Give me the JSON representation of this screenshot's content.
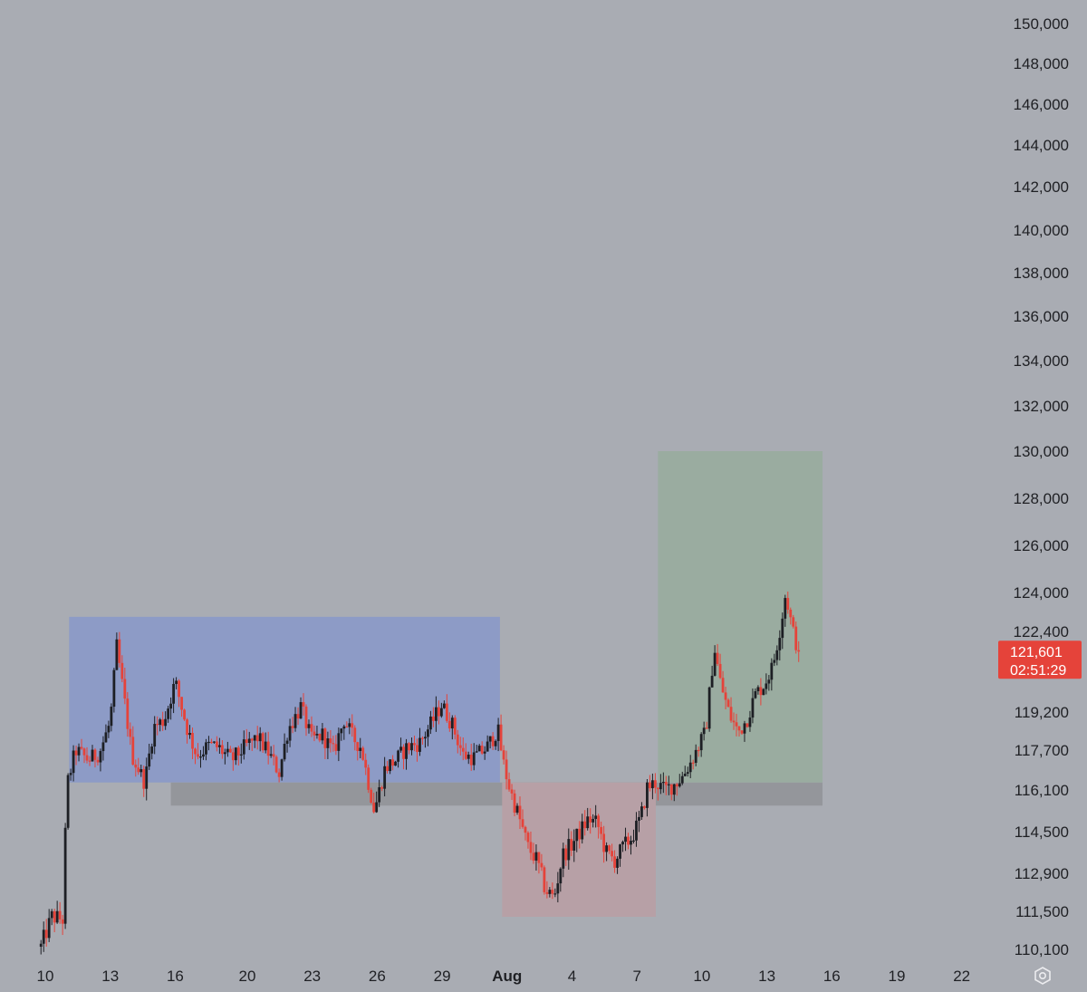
{
  "chart_data": {
    "type": "candlestick",
    "y_axis": {
      "ticks": [
        "150,000",
        "148,000",
        "146,000",
        "144,000",
        "142,000",
        "140,000",
        "138,000",
        "136,000",
        "134,000",
        "132,000",
        "130,000",
        "128,000",
        "126,000",
        "124,000",
        "122,400",
        "119,200",
        "117,700",
        "116,100",
        "114,500",
        "112,900",
        "111,500",
        "110,100"
      ],
      "range": [
        109600,
        150500
      ]
    },
    "x_axis": {
      "ticks": [
        {
          "label": "10",
          "day": 10
        },
        {
          "label": "13",
          "day": 13
        },
        {
          "label": "16",
          "day": 16
        },
        {
          "label": "20",
          "day": 19.33
        },
        {
          "label": "23",
          "day": 22.33
        },
        {
          "label": "26",
          "day": 25.33
        },
        {
          "label": "29",
          "day": 28.33
        },
        {
          "label": "Aug",
          "day": 31.33,
          "bold": true
        },
        {
          "label": "4",
          "day": 34.33
        },
        {
          "label": "7",
          "day": 37.33
        },
        {
          "label": "10",
          "day": 40.33
        },
        {
          "label": "13",
          "day": 43.33
        },
        {
          "label": "16",
          "day": 46.33
        },
        {
          "label": "19",
          "day": 49.33
        },
        {
          "label": "22",
          "day": 52.33
        }
      ],
      "range": [
        9.6,
        54.0
      ]
    },
    "last_price": {
      "price": "121,601",
      "countdown": "02:51:29",
      "value": 121601
    },
    "zones": [
      {
        "name": "range-zone",
        "x0": 11.1,
        "x1": 31.0,
        "y0": 116400,
        "y1": 123000,
        "color": "#8d9bc6"
      },
      {
        "name": "demand-zone",
        "x0": 15.8,
        "x1": 45.9,
        "y0": 115500,
        "y1": 116400,
        "color": "#94969b"
      },
      {
        "name": "sweep-zone",
        "x0": 31.1,
        "x1": 38.2,
        "y0": 111300,
        "y1": 116400,
        "color": "#b7a0a6"
      },
      {
        "name": "target-zone",
        "x0": 38.3,
        "x1": 45.9,
        "y0": 116400,
        "y1": 130000,
        "color": "#9aaca0"
      }
    ],
    "colors": {
      "up": "#1d1f24",
      "down": "#e5433a",
      "tag": "#e5433a"
    },
    "anchors": [
      [
        9.8,
        110200
      ],
      [
        10.3,
        111300
      ],
      [
        10.8,
        111200
      ],
      [
        11.0,
        116300
      ],
      [
        11.4,
        117700
      ],
      [
        12.0,
        117300
      ],
      [
        12.5,
        117600
      ],
      [
        13.0,
        118800
      ],
      [
        13.3,
        121800
      ],
      [
        13.6,
        120000
      ],
      [
        14.0,
        117500
      ],
      [
        14.6,
        116400
      ],
      [
        15.0,
        118600
      ],
      [
        15.5,
        118900
      ],
      [
        16.0,
        120400
      ],
      [
        16.6,
        118400
      ],
      [
        17.0,
        117500
      ],
      [
        17.6,
        117900
      ],
      [
        18.0,
        117800
      ],
      [
        18.6,
        117300
      ],
      [
        19.2,
        117800
      ],
      [
        19.8,
        118200
      ],
      [
        20.3,
        117600
      ],
      [
        20.8,
        116800
      ],
      [
        21.2,
        118500
      ],
      [
        21.8,
        119400
      ],
      [
        22.3,
        118100
      ],
      [
        22.8,
        118300
      ],
      [
        23.3,
        117600
      ],
      [
        23.8,
        118900
      ],
      [
        24.2,
        118200
      ],
      [
        24.6,
        117800
      ],
      [
        24.9,
        116500
      ],
      [
        25.2,
        115300
      ],
      [
        25.7,
        117000
      ],
      [
        26.2,
        117300
      ],
      [
        26.7,
        117800
      ],
      [
        27.3,
        118000
      ],
      [
        27.8,
        118700
      ],
      [
        28.3,
        119500
      ],
      [
        28.8,
        118700
      ],
      [
        29.3,
        117500
      ],
      [
        29.8,
        117400
      ],
      [
        30.4,
        117800
      ],
      [
        30.9,
        118500
      ],
      [
        31.2,
        117000
      ],
      [
        31.5,
        116000
      ],
      [
        31.9,
        115000
      ],
      [
        32.3,
        113900
      ],
      [
        32.7,
        113400
      ],
      [
        33.1,
        112300
      ],
      [
        33.5,
        112000
      ],
      [
        33.9,
        113600
      ],
      [
        34.3,
        114000
      ],
      [
        34.7,
        114500
      ],
      [
        35.1,
        115000
      ],
      [
        35.5,
        114800
      ],
      [
        35.9,
        113700
      ],
      [
        36.3,
        113400
      ],
      [
        36.7,
        113900
      ],
      [
        37.1,
        114300
      ],
      [
        37.5,
        115000
      ],
      [
        37.8,
        116200
      ],
      [
        38.2,
        116400
      ],
      [
        38.6,
        116100
      ],
      [
        39.0,
        116300
      ],
      [
        39.4,
        116600
      ],
      [
        39.8,
        117200
      ],
      [
        40.2,
        117900
      ],
      [
        40.5,
        118400
      ],
      [
        40.9,
        121800
      ],
      [
        41.2,
        120300
      ],
      [
        41.6,
        119100
      ],
      [
        42.0,
        118400
      ],
      [
        42.4,
        118900
      ],
      [
        42.8,
        119900
      ],
      [
        43.2,
        120300
      ],
      [
        43.6,
        121000
      ],
      [
        44.0,
        122800
      ],
      [
        44.2,
        124000
      ],
      [
        44.5,
        122500
      ],
      [
        44.8,
        121601
      ]
    ]
  }
}
